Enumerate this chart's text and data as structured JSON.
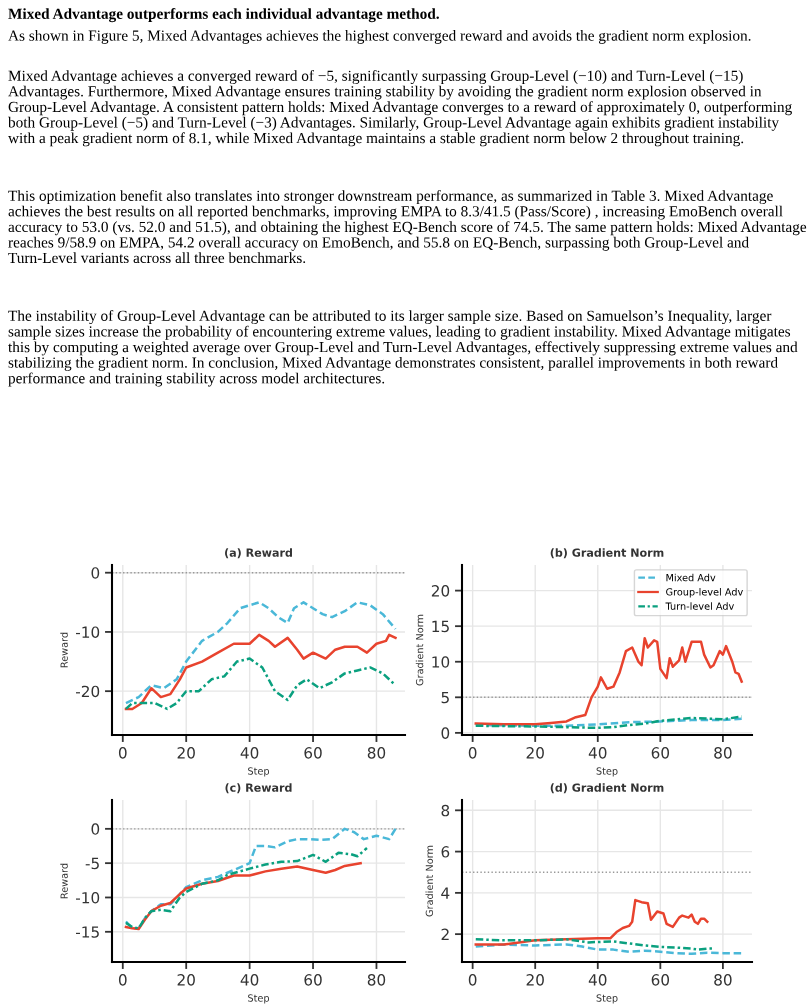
{
  "chart_data": [
    {
      "type": "line",
      "title": "(a) Reward",
      "xlabel": "Step",
      "ylabel": "Reward",
      "xlim": [
        -3.4,
        89
      ],
      "ylim": [
        -27.4,
        1.3
      ],
      "xticks": [
        0,
        20,
        40,
        60,
        80
      ],
      "yticks": [
        0,
        -10,
        -20
      ],
      "grid": true,
      "legend": false,
      "annotations": [
        "Mixed Advantage outperforms each individual advantage method.",
        "As shown in Figure 5, Mixed Advantages achieves the highest converged reward and avoids the gradient norm explosion.",
        "Mixed Advantage achieves a converged reward of −5, significantly surpassing Group-Level (−10) and Turn-Level (−15) Advantages. Furthermore, Mixed Advantage ensures training stability by avoiding the gradient norm explosion observed in Group-Level Advantage. A consistent pattern holds: Mixed Advantage converges to a reward of approximately 0, outperforming both Group-Level (−5) and Turn-Level (−3) Advantages. Similarly, Group-Level Advantage again exhibits gradient instability with a peak gradient norm of 8.1, while Mixed Advantage maintains a stable gradient norm below 2 throughout training.",
        "This optimization benefit also translates into stronger downstream performance, as summarized in Table 3. Mixed Advantage achieves the best results on all reported benchmarks, improving EMPA to 8.3/41.5 (Pass/Score) , increasing EmoBench overall accuracy to 53.0 (vs. 52.0 and 51.5), and obtaining the highest EQ-Bench score of 74.5. The same pattern holds: Mixed Advantage reaches 9/58.9 on EMPA, 54.2 overall accuracy on EmoBench, and 55.8 on EQ-Bench, surpassing both Group-Level and Turn-Level variants across all three benchmarks.",
        "The instability of Group-Level Advantage can be attributed to its larger sample size. Based on Samuelson’s Inequality, larger sample sizes increase the probability of encountering extreme values, leading to gradient instability. Mixed Advantage mitigates this by computing a weighted average over Group-Level and Turn-Level Advantages, effectively suppressing extreme values and stabilizing the gradient norm. In conclusion, Mixed Advantage demonstrates consistent, parallel improvements in both reward performance and training stability across model architectures."
      ],
      "ref_lines": [
        {
          "axis": "y",
          "value": 0,
          "color": "#999999",
          "line_style": "dotted"
        }
      ],
      "series": [
        {
          "color": "#4ab8d8",
          "line_style": "dashed",
          "x": [
            1,
            5,
            9,
            13,
            17,
            20,
            25,
            30,
            33,
            37,
            40,
            43,
            46,
            49,
            52,
            54,
            57,
            60,
            63,
            66,
            70,
            74,
            78,
            82,
            86
          ],
          "values": [
            -22,
            -21,
            -19,
            -19.5,
            -18,
            -15,
            -11.5,
            -10,
            -8.5,
            -6,
            -5.5,
            -5,
            -6,
            -7.5,
            -8.5,
            -6,
            -5,
            -6,
            -7,
            -7.5,
            -6.5,
            -5,
            -5.5,
            -7,
            -9.5
          ]
        },
        {
          "color": "#e8432e",
          "line_style": "solid",
          "x": [
            1,
            3,
            6,
            9,
            12,
            15,
            18,
            20,
            25,
            30,
            35,
            40,
            43,
            46,
            48,
            52,
            55,
            57,
            60,
            64,
            67,
            70,
            74,
            77,
            80,
            83,
            84,
            86
          ],
          "values": [
            -23,
            -23,
            -22,
            -19.5,
            -21,
            -20.5,
            -18,
            -16,
            -15,
            -13.5,
            -12,
            -12,
            -10.5,
            -11.5,
            -12.5,
            -11,
            -13,
            -14.5,
            -13.5,
            -14.5,
            -13,
            -12.5,
            -12.5,
            -13.5,
            -12,
            -11.5,
            -10.5,
            -11
          ]
        },
        {
          "color": "#0aa07f",
          "line_style": "dashdot",
          "x": [
            1,
            3,
            6,
            10,
            14,
            17,
            20,
            24,
            28,
            32,
            36,
            40,
            44,
            48,
            52,
            55,
            58,
            62,
            66,
            70,
            74,
            78,
            82,
            86
          ],
          "values": [
            -23,
            -22,
            -22,
            -22,
            -23,
            -22,
            -20,
            -20,
            -18,
            -17.5,
            -15,
            -14.5,
            -16,
            -20,
            -21.5,
            -19,
            -18,
            -19.5,
            -18.5,
            -17,
            -16.5,
            -16,
            -17,
            -19
          ]
        }
      ]
    },
    {
      "type": "line",
      "title": "(b) Gradient Norm",
      "xlabel": "Step",
      "ylabel": "Gradient Norm",
      "xlim": [
        -3.4,
        89.3
      ],
      "ylim": [
        -0.3,
        23.6
      ],
      "xticks": [
        0,
        20,
        40,
        60,
        80
      ],
      "yticks": [
        0,
        5,
        10,
        15,
        20
      ],
      "grid": true,
      "legend": "top right",
      "ref_lines": [
        {
          "axis": "y",
          "value": 5,
          "color": "#999999",
          "line_style": "dotted"
        }
      ],
      "series": [
        {
          "name": "Mixed Adv",
          "color": "#4ab8d8",
          "line_style": "dashed",
          "x": [
            1,
            20,
            30,
            40,
            50,
            60,
            70,
            80,
            86
          ],
          "values": [
            1.1,
            1.0,
            1.0,
            1.2,
            1.5,
            1.6,
            1.8,
            1.8,
            2.0
          ]
        },
        {
          "name": "Group-level Adv",
          "color": "#e8432e",
          "line_style": "solid",
          "x": [
            1,
            10,
            20,
            25,
            30,
            33,
            36,
            38,
            40,
            41,
            43,
            45,
            47,
            49,
            51,
            53,
            54,
            55,
            56,
            58,
            59,
            60,
            62,
            63,
            64,
            66,
            67,
            68,
            70,
            72,
            73,
            74,
            76,
            77,
            79,
            80,
            81,
            83,
            84,
            85,
            86
          ],
          "values": [
            1.3,
            1.2,
            1.2,
            1.4,
            1.6,
            2.2,
            2.5,
            5,
            6.5,
            7.8,
            6.2,
            6.5,
            8.5,
            11.5,
            12,
            10,
            9.5,
            13.3,
            12,
            13,
            12.8,
            9,
            7.7,
            10.5,
            9.3,
            10.2,
            12,
            10,
            12.8,
            12.8,
            12.8,
            11,
            9.2,
            9.5,
            11.5,
            11,
            12.2,
            10,
            8.5,
            8.3,
            7.2
          ]
        },
        {
          "name": "Turn-level Adv",
          "color": "#0aa07f",
          "line_style": "dashdot",
          "x": [
            1,
            20,
            30,
            40,
            45,
            50,
            55,
            60,
            65,
            70,
            80,
            86
          ],
          "values": [
            1.0,
            0.9,
            0.8,
            0.7,
            0.8,
            1.1,
            1.3,
            1.7,
            1.9,
            2.1,
            1.9,
            2.3
          ]
        }
      ]
    },
    {
      "type": "line",
      "title": "(c) Reward",
      "xlabel": "Step",
      "ylabel": "Reward",
      "xlim": [
        -3.4,
        89
      ],
      "ylim": [
        -19.4,
        4.2
      ],
      "xticks": [
        0,
        20,
        40,
        60,
        80
      ],
      "yticks": [
        0,
        -5,
        -10,
        -15
      ],
      "grid": true,
      "legend": false,
      "ref_lines": [
        {
          "axis": "y",
          "value": 0,
          "color": "#999999",
          "line_style": "dotted"
        }
      ],
      "series": [
        {
          "color": "#4ab8d8",
          "line_style": "dashed",
          "x": [
            1,
            3,
            5,
            7,
            9,
            12,
            15,
            18,
            20,
            25,
            30,
            35,
            40,
            42,
            45,
            48,
            52,
            55,
            58,
            62,
            66,
            70,
            73,
            76,
            80,
            84,
            86
          ],
          "values": [
            -13.5,
            -14.5,
            -14.5,
            -13,
            -12,
            -11,
            -11,
            -9.5,
            -8.5,
            -7.5,
            -7,
            -6,
            -5,
            -2.5,
            -2.5,
            -2.7,
            -1.8,
            -1.5,
            -1.5,
            -1.6,
            -1.5,
            0,
            -0.5,
            -1.5,
            -1,
            -1.5,
            0
          ]
        },
        {
          "color": "#e8432e",
          "line_style": "solid",
          "x": [
            1,
            3,
            5,
            7,
            9,
            12,
            15,
            18,
            20,
            25,
            30,
            35,
            40,
            45,
            50,
            55,
            60,
            64,
            67,
            70,
            75
          ],
          "values": [
            -14.3,
            -14.5,
            -14.6,
            -13.2,
            -12,
            -11.2,
            -10.8,
            -9.5,
            -8.7,
            -8,
            -7.6,
            -6.8,
            -6.8,
            -6.2,
            -5.8,
            -5.5,
            -6,
            -6.4,
            -6,
            -5.4,
            -5
          ]
        },
        {
          "color": "#0aa07f",
          "line_style": "dashdot",
          "x": [
            1,
            3,
            5,
            7,
            9,
            12,
            15,
            18,
            20,
            25,
            30,
            33,
            37,
            40,
            45,
            50,
            55,
            60,
            64,
            68,
            72,
            74,
            77
          ],
          "values": [
            -13.7,
            -14.3,
            -14.5,
            -13,
            -12,
            -11.8,
            -12,
            -10,
            -9.2,
            -8,
            -7.5,
            -6.7,
            -6.2,
            -5.8,
            -5.2,
            -4.8,
            -4.7,
            -3.8,
            -4.8,
            -3.5,
            -3.7,
            -4,
            -2.8
          ]
        }
      ]
    },
    {
      "type": "line",
      "title": "(d) Gradient Norm",
      "xlabel": "Step",
      "ylabel": "Gradient Norm",
      "xlim": [
        -3.4,
        89.3
      ],
      "ylim": [
        0.65,
        8.5
      ],
      "xticks": [
        0,
        20,
        40,
        60,
        80
      ],
      "yticks": [
        2,
        4,
        6,
        8
      ],
      "grid": true,
      "legend": false,
      "ref_lines": [
        {
          "axis": "y",
          "value": 5,
          "color": "#999999",
          "line_style": "dotted"
        }
      ],
      "series": [
        {
          "color": "#4ab8d8",
          "line_style": "dashed",
          "x": [
            1,
            10,
            20,
            30,
            35,
            40,
            45,
            50,
            55,
            60,
            65,
            70,
            75,
            80,
            86
          ],
          "values": [
            1.4,
            1.5,
            1.45,
            1.5,
            1.4,
            1.25,
            1.25,
            1.15,
            1.2,
            1.15,
            1.08,
            1.05,
            1.1,
            1.08,
            1.07
          ]
        },
        {
          "color": "#e8432e",
          "line_style": "solid",
          "x": [
            1,
            10,
            20,
            30,
            40,
            44,
            46,
            48,
            50,
            51,
            52,
            54,
            56,
            57,
            59,
            61,
            62,
            64,
            66,
            67,
            69,
            70,
            71,
            72,
            73,
            74,
            75
          ],
          "values": [
            1.5,
            1.5,
            1.7,
            1.75,
            1.8,
            1.8,
            2.1,
            2.3,
            2.4,
            2.6,
            3.65,
            3.55,
            3.5,
            2.7,
            3.1,
            3,
            2.5,
            2.35,
            2.8,
            2.9,
            2.8,
            2.95,
            2.6,
            2.5,
            2.75,
            2.75,
            2.6
          ]
        },
        {
          "color": "#0aa07f",
          "line_style": "dashdot",
          "x": [
            1,
            10,
            20,
            30,
            37,
            45,
            50,
            55,
            60,
            65,
            70,
            72,
            75,
            77
          ],
          "values": [
            1.75,
            1.7,
            1.7,
            1.75,
            1.6,
            1.65,
            1.55,
            1.45,
            1.38,
            1.35,
            1.3,
            1.25,
            1.3,
            1.3
          ]
        }
      ]
    }
  ]
}
